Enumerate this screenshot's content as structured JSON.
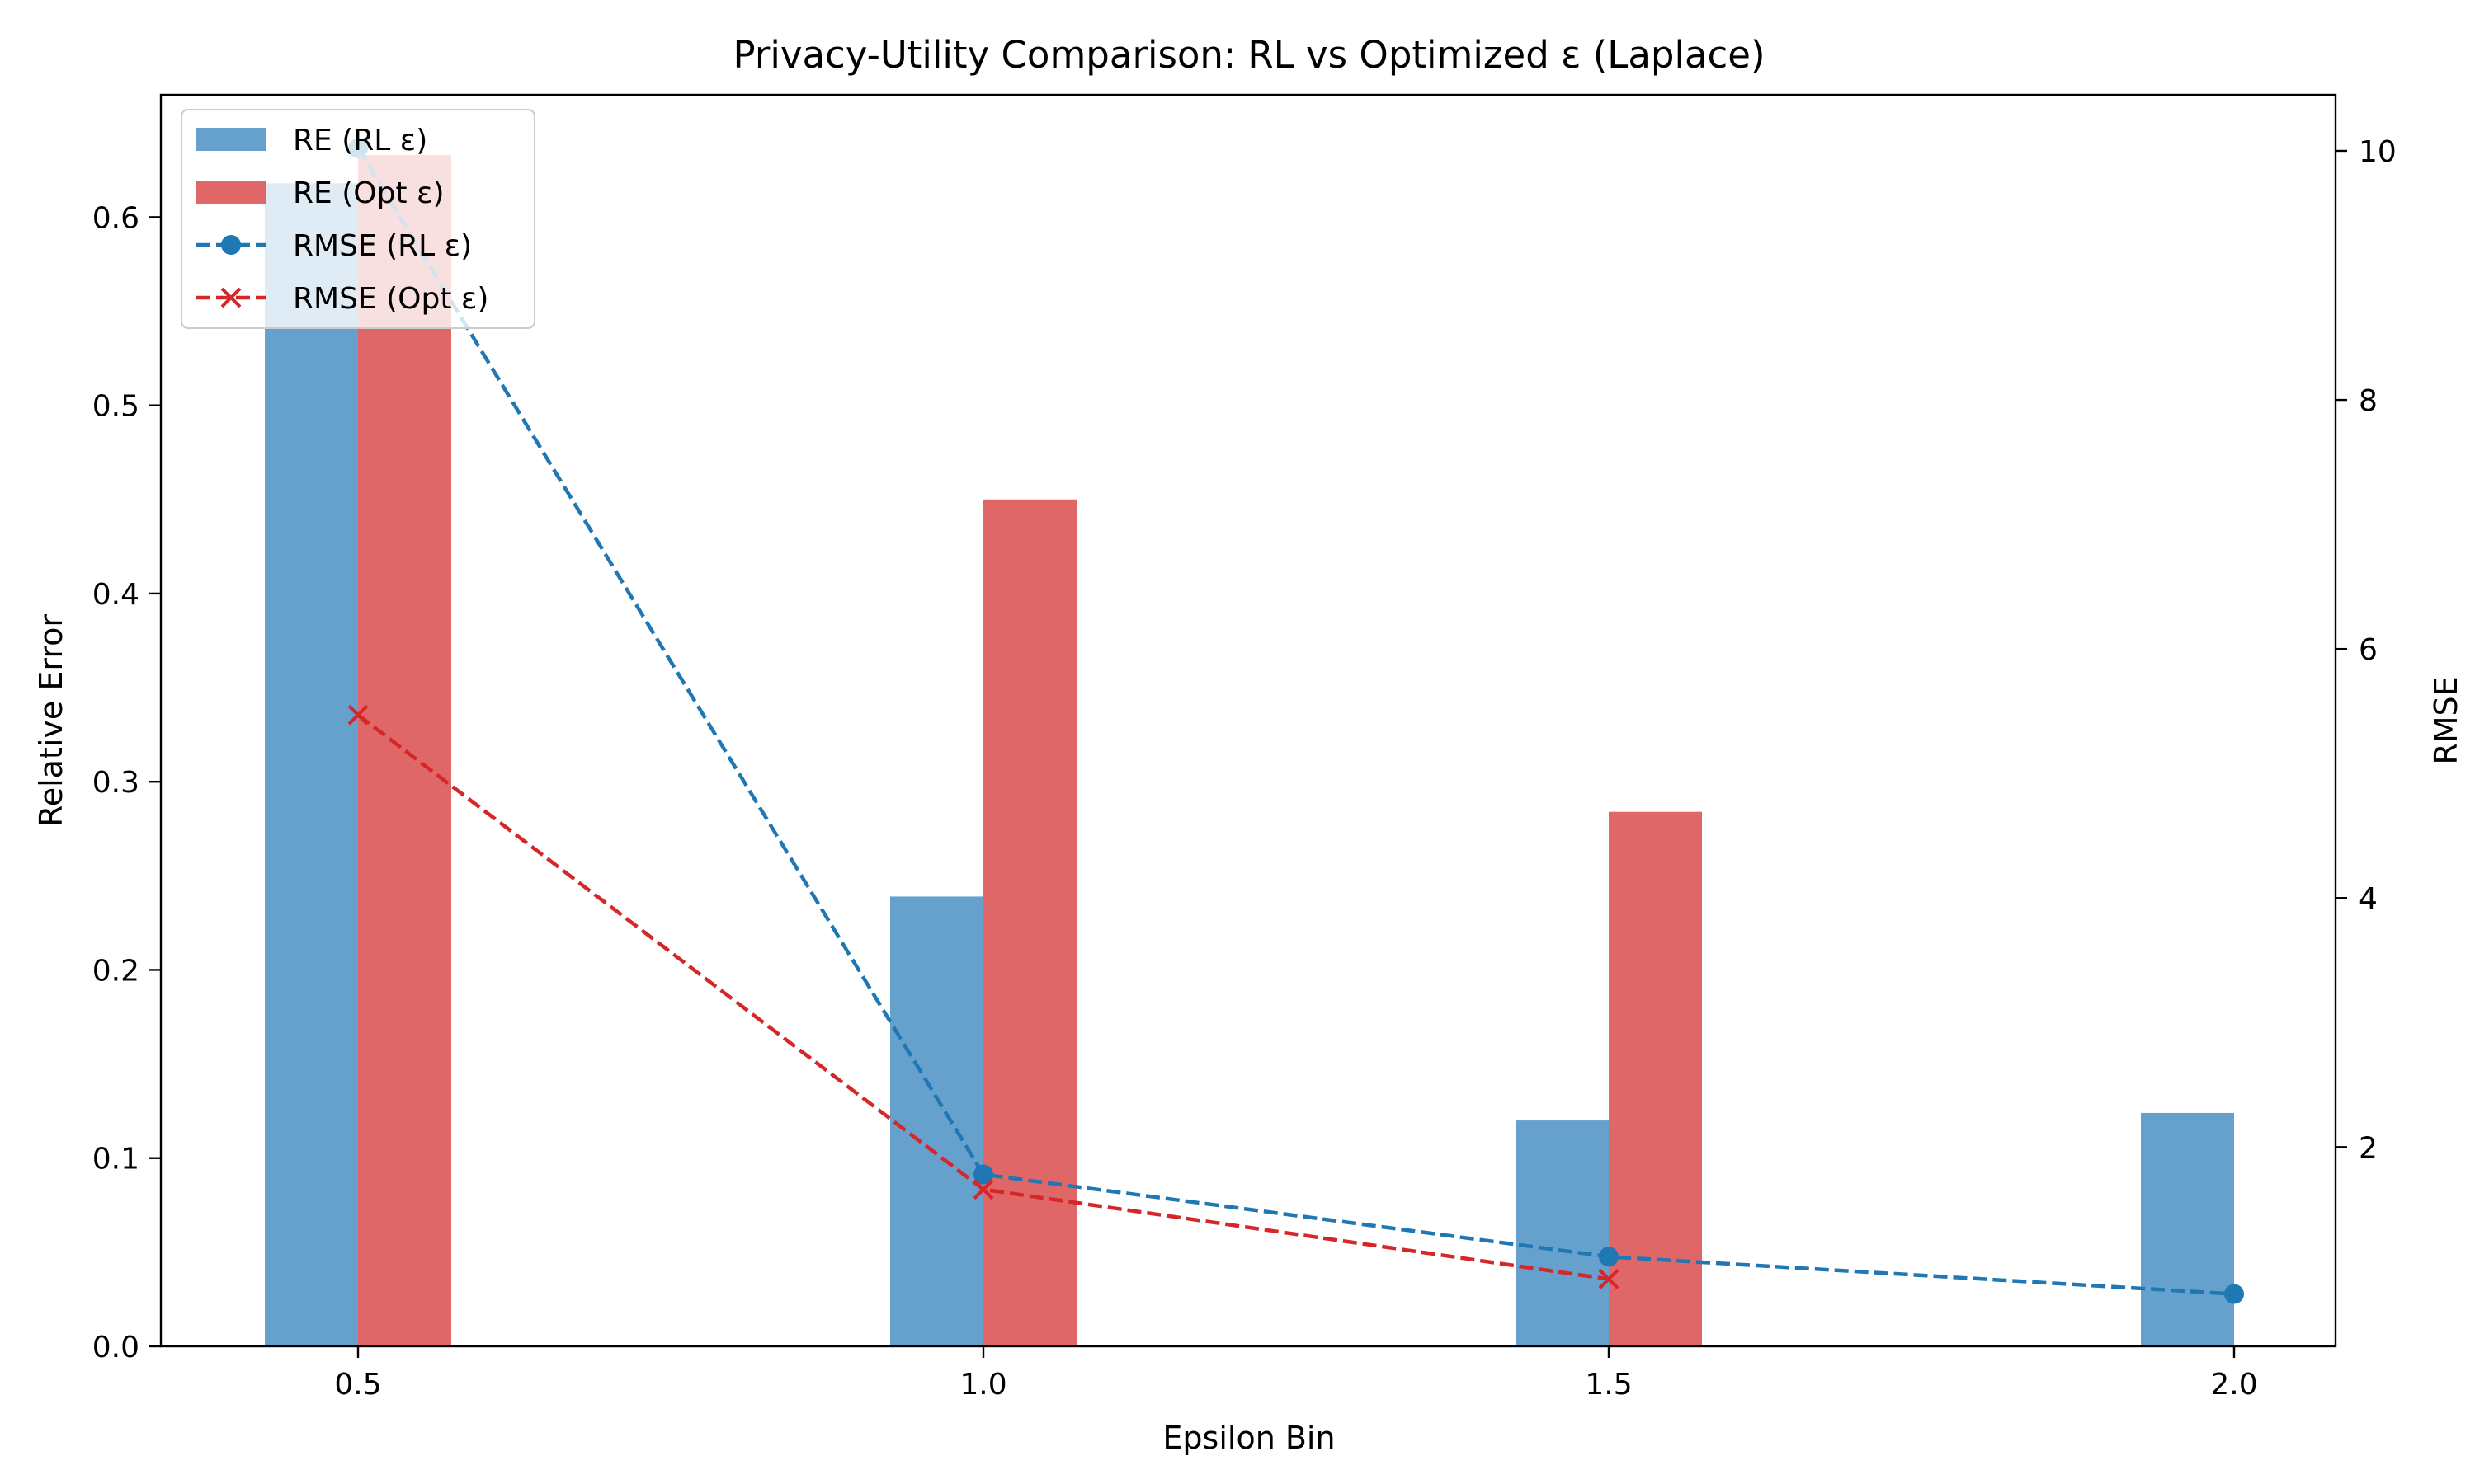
{
  "chart_data": {
    "type": "bar",
    "title": "Privacy-Utility Comparison: RL vs Optimized ε (Laplace)",
    "xlabel": "Epsilon Bin",
    "ylabel": "Relative Error",
    "y2label": "RMSE",
    "categories": [
      "0.5",
      "1.0",
      "1.5",
      "2.0"
    ],
    "ylim": [
      0,
      0.665
    ],
    "y2lim": [
      0.4,
      10.45
    ],
    "yticks": [
      "0.0",
      "0.1",
      "0.2",
      "0.3",
      "0.4",
      "0.5",
      "0.6"
    ],
    "y2ticks": [
      "2",
      "4",
      "6",
      "8",
      "10"
    ],
    "legend_position": "upper-left",
    "grid": false,
    "bar_series": [
      {
        "name": "RE (RL ε)",
        "color": "#65a1cc",
        "values": [
          0.618,
          0.239,
          0.12,
          0.124
        ]
      },
      {
        "name": "RE (Opt ε)",
        "color": "#e06767",
        "values": [
          0.633,
          0.45,
          0.284,
          null
        ]
      }
    ],
    "line_series": [
      {
        "name": "RMSE (RL ε)",
        "color": "#1f77b4",
        "marker": "circle",
        "style": "dashed",
        "values": [
          10.02,
          1.78,
          1.12,
          0.82
        ]
      },
      {
        "name": "RMSE (Opt ε)",
        "color": "#d62728",
        "marker": "x",
        "style": "dashed",
        "values": [
          5.47,
          1.66,
          0.94,
          null
        ]
      }
    ]
  }
}
